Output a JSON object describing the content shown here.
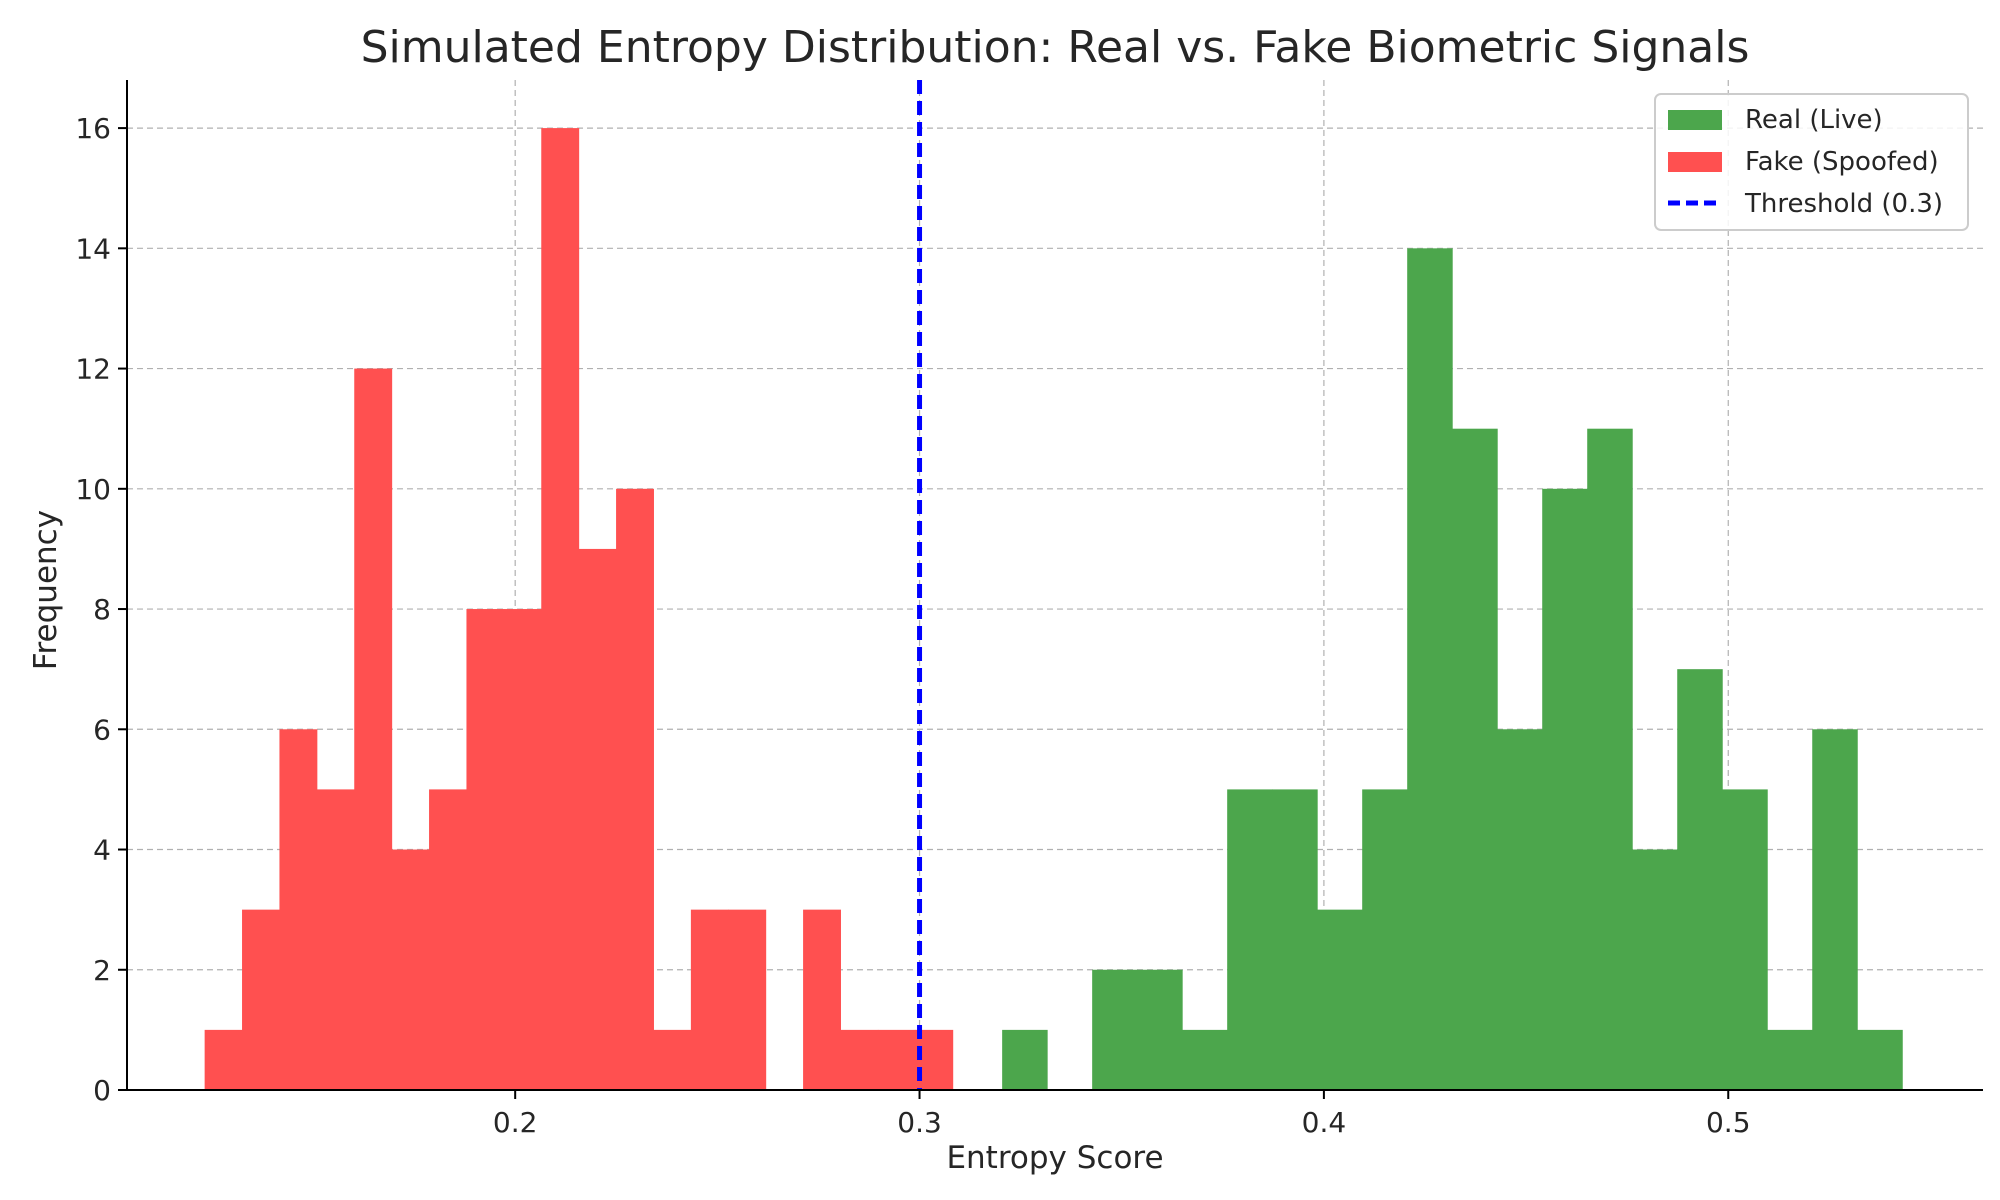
{
  "chart_data": {
    "type": "bar",
    "title": "Simulated Entropy Distribution: Real vs. Fake Biometric Signals",
    "xlabel": "Entropy Score",
    "ylabel": "Frequency",
    "xlim": [
      0.104,
      0.563
    ],
    "ylim": [
      0,
      16.8
    ],
    "xticks": [
      0.2,
      0.3,
      0.4,
      0.5
    ],
    "xtick_labels": [
      "0.2",
      "0.3",
      "0.4",
      "0.5"
    ],
    "yticks": [
      0,
      2,
      4,
      6,
      8,
      10,
      12,
      14,
      16
    ],
    "ytick_labels": [
      "0",
      "2",
      "4",
      "6",
      "8",
      "10",
      "12",
      "14",
      "16"
    ],
    "grid": true,
    "legend_position": "top-right",
    "series": [
      {
        "name": "Real (Live)",
        "color": "#4ca64c",
        "bin_start": 0.3093,
        "bin_width": 0.01113,
        "counts": [
          0,
          1,
          0,
          2,
          2,
          1,
          5,
          5,
          3,
          5,
          14,
          11,
          6,
          10,
          11,
          4,
          7,
          5,
          1,
          6,
          1
        ]
      },
      {
        "name": "Fake (Spoofed)",
        "color": "#ff5050",
        "bin_start": 0.1232,
        "bin_width": 0.00925,
        "counts": [
          1,
          3,
          6,
          5,
          12,
          4,
          5,
          8,
          8,
          16,
          9,
          10,
          1,
          3,
          3,
          0,
          3,
          1,
          1,
          1
        ]
      }
    ],
    "threshold": {
      "name": "Threshold (0.3)",
      "x": 0.3,
      "color": "#0000ff"
    }
  }
}
